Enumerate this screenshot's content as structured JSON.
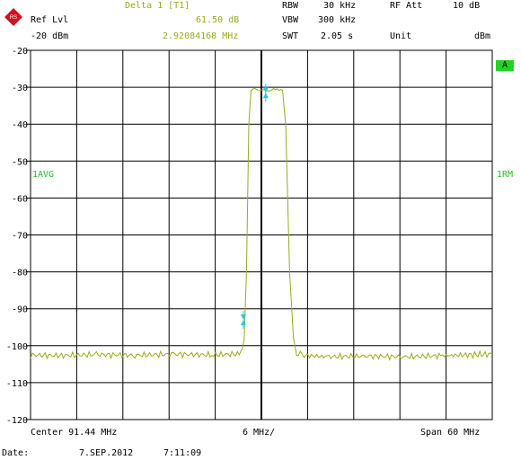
{
  "header": {
    "ref_lvl_label": "Ref Lvl",
    "ref_lvl_value": "-20 dBm",
    "marker_label": "Delta 1 [T1]",
    "marker_level": "61.50 dB",
    "marker_freq": "2.92084168 MHz",
    "rbw_label": "RBW",
    "rbw_value": "30 kHz",
    "vbw_label": "VBW",
    "vbw_value": "300 kHz",
    "swt_label": "SWT",
    "swt_value": "2.05 s",
    "rfatt_label": "RF Att",
    "rfatt_value": "10 dB",
    "unit_label": "Unit",
    "unit_value": "dBm"
  },
  "side_labels": {
    "trace_badge": "A",
    "left_mode": "1AVG",
    "right_mode": "1RM"
  },
  "footer": {
    "center": "Center 91.44 MHz",
    "per_div": "6 MHz/",
    "span": "Span 60 MHz",
    "date_label": "Date:",
    "date_value": "7.SEP.2012",
    "time_value": "7:11:09"
  },
  "colors": {
    "trace": "#9aab1e",
    "marker": "#28c8e0",
    "grid": "#000000",
    "badge": "#22d422"
  },
  "chart_data": {
    "type": "line",
    "title": "",
    "xlabel": "",
    "ylabel": "",
    "xlim": [
      61.44,
      121.44
    ],
    "ylim": [
      -120,
      -20
    ],
    "yticks": [
      -20,
      -30,
      -40,
      -50,
      -60,
      -70,
      -80,
      -90,
      -100,
      -110,
      -120
    ],
    "x_divisions": 10,
    "y_unit": "dBm",
    "grid": true,
    "series": [
      {
        "x": [
          61.44,
          65,
          70,
          75,
          80,
          85,
          88.8,
          89.2,
          89.5,
          89.8,
          90.1,
          90.5,
          92,
          93.5,
          94.2,
          94.6,
          95.1,
          95.6,
          96,
          97,
          100,
          105,
          110,
          115,
          121.44
        ],
        "y": [
          -102.5,
          -102.7,
          -102.4,
          -102.6,
          -102.3,
          -102.5,
          -102.2,
          -98,
          -80,
          -40,
          -31,
          -30.5,
          -31,
          -30.5,
          -31,
          -40,
          -80,
          -98,
          -102,
          -102.6,
          -103,
          -102.8,
          -103,
          -102.7,
          -102.3
        ]
      }
    ],
    "markers": [
      {
        "name": "1",
        "x": 92.0,
        "y": -31.5
      },
      {
        "name": "D",
        "x": 89.1,
        "y": -93.0
      }
    ],
    "center_line_x": 91.44
  }
}
